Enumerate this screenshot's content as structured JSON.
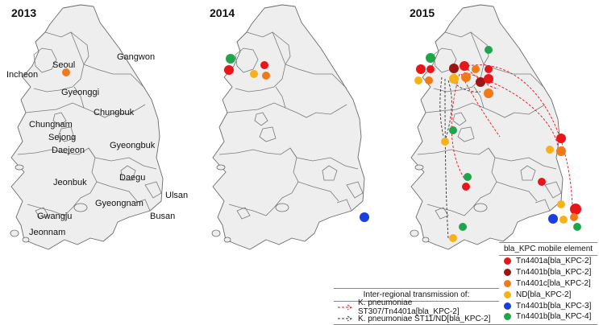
{
  "years": [
    "2013",
    "2014",
    "2015"
  ],
  "regions": {
    "seoul": "Seoul",
    "incheon": "Incheon",
    "gyeonggi": "Gyeonggi",
    "gangwon": "Gangwon",
    "chungbuk": "Chungbuk",
    "chungnam": "Chungnam",
    "sejong": "Sejong",
    "daejeon": "Daejeon",
    "gyeongbuk": "Gyeongbuk",
    "daegu": "Daegu",
    "jeonbuk": "Jeonbuk",
    "ulsan": "Ulsan",
    "gyeongnam": "Gyeongnam",
    "busan": "Busan",
    "gwangju": "Gwangju",
    "jeonnam": "Jeonnam"
  },
  "mobile_element_legend": {
    "title": "bla_KPC mobile element",
    "items": [
      {
        "label": "Tn4401a[bla_KPC-2]",
        "color": "#e8151a"
      },
      {
        "label": "Tn4401b[bla_KPC-2]",
        "color": "#9c1414"
      },
      {
        "label": "Tn4401c[bla_KPC-2]",
        "color": "#f07a1a"
      },
      {
        "label": "ND[bla_KPC-2]",
        "color": "#f7b21a"
      },
      {
        "label": "Tn4401b[bla_KPC-3]",
        "color": "#1a3fe0"
      },
      {
        "label": "Tn4401b[bla_KPC-4]",
        "color": "#1fa64a"
      }
    ]
  },
  "transmission_legend": {
    "title": "Inter-regional transmission of:",
    "items": [
      {
        "label": "K. pneumoniae ST307/Tn4401a[bla_KPC-2]",
        "color": "#e8151a"
      },
      {
        "label": "K. pneumoniae ST11/ND[bla_KPC-2]",
        "color": "#333333"
      }
    ]
  }
}
